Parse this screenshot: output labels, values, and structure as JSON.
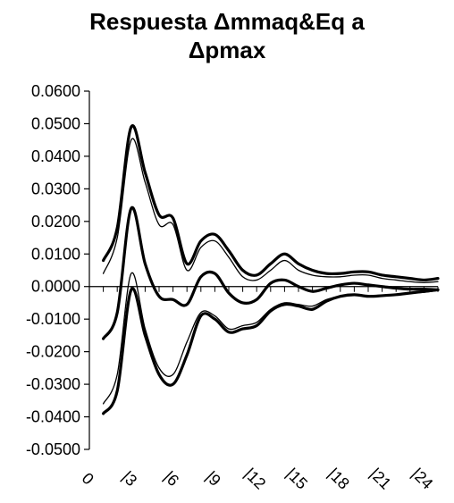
{
  "chart_data": {
    "type": "line",
    "title_lines": [
      "Respuesta Δmmaq&Eq a",
      "Δpmax"
    ],
    "xlabel": "",
    "ylabel": "",
    "x": [
      1,
      2,
      3,
      4,
      5,
      6,
      7,
      8,
      9,
      10,
      11,
      12,
      13,
      14,
      15,
      16,
      17,
      18,
      19,
      20,
      21,
      22,
      23,
      24,
      25
    ],
    "x_tick_labels": [
      {
        "x": 0,
        "label": "0"
      },
      {
        "x": 3,
        "label": "|3"
      },
      {
        "x": 6,
        "label": "|6"
      },
      {
        "x": 9,
        "label": "|9"
      },
      {
        "x": 12,
        "label": "|12"
      },
      {
        "x": 15,
        "label": "|15"
      },
      {
        "x": 18,
        "label": "|18"
      },
      {
        "x": 21,
        "label": "|21"
      },
      {
        "x": 24,
        "label": "|24"
      }
    ],
    "xlim": [
      0,
      25
    ],
    "ylim": [
      -0.05,
      0.06
    ],
    "y_ticks": [
      0.06,
      0.05,
      0.04,
      0.03,
      0.02,
      0.01,
      0.0,
      -0.01,
      -0.02,
      -0.03,
      -0.04,
      -0.05
    ],
    "y_tick_labels": [
      "0.0600",
      "0.0500",
      "0.0400",
      "0.0300",
      "0.0200",
      "0.0100",
      "0.0000",
      "-0.0100",
      "-0.0200",
      "-0.0300",
      "-0.0400",
      "-0.0500"
    ],
    "grid": false,
    "legend": "none",
    "series": [
      {
        "style": "thick",
        "values": [
          0.008,
          0.018,
          0.049,
          0.035,
          0.022,
          0.021,
          0.007,
          0.014,
          0.016,
          0.011,
          0.005,
          0.0035,
          0.007,
          0.01,
          0.007,
          0.005,
          0.004,
          0.004,
          0.0045,
          0.0045,
          0.0035,
          0.003,
          0.0025,
          0.002,
          0.0025
        ]
      },
      {
        "style": "thin",
        "values": [
          0.004,
          0.015,
          0.045,
          0.032,
          0.019,
          0.019,
          0.005,
          0.012,
          0.014,
          0.009,
          0.003,
          0.002,
          0.005,
          0.008,
          0.005,
          0.0035,
          0.003,
          0.003,
          0.0035,
          0.0035,
          0.0025,
          0.002,
          0.0015,
          0.0012,
          0.0015
        ]
      },
      {
        "style": "thick",
        "values": [
          -0.016,
          -0.008,
          0.024,
          0.007,
          -0.003,
          -0.004,
          -0.0055,
          0.003,
          0.004,
          -0.002,
          -0.005,
          -0.004,
          0.001,
          0.002,
          0.0,
          -0.0015,
          -0.0005,
          0.0005,
          0.001,
          0.0005,
          0.0,
          -0.0005,
          -0.0008,
          -0.0008,
          -0.001
        ]
      },
      {
        "style": "thin",
        "values": [
          -0.036,
          -0.027,
          0.004,
          -0.013,
          -0.025,
          -0.027,
          -0.017,
          -0.008,
          -0.009,
          -0.013,
          -0.012,
          -0.011,
          -0.007,
          -0.005,
          -0.0055,
          -0.006,
          -0.004,
          -0.003,
          -0.0025,
          -0.003,
          -0.0028,
          -0.0025,
          -0.002,
          -0.0018,
          -0.0012
        ]
      },
      {
        "style": "thick",
        "values": [
          -0.039,
          -0.032,
          -0.001,
          -0.015,
          -0.027,
          -0.03,
          -0.021,
          -0.009,
          -0.01,
          -0.014,
          -0.013,
          -0.012,
          -0.0075,
          -0.0055,
          -0.006,
          -0.007,
          -0.0045,
          -0.003,
          -0.0025,
          -0.003,
          -0.0028,
          -0.0025,
          -0.002,
          -0.0015,
          -0.001
        ]
      }
    ]
  }
}
